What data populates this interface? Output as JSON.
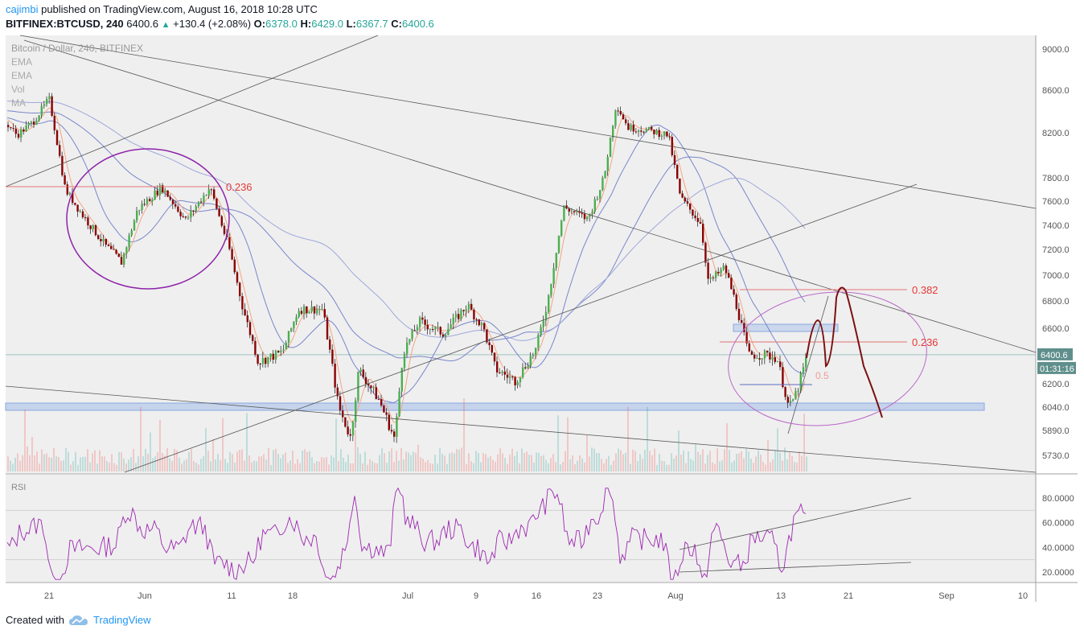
{
  "header": {
    "author": "cajimbi",
    "published_text": "published on TradingView.com, August 16, 2018 10:28 UTC",
    "symbol": "BITFINEX:BTCUSD, 240",
    "last": "6400.6",
    "change": "+130.4 (+2.08%)",
    "o_label": "O:",
    "o": "6378.0",
    "h_label": "H:",
    "h": "6429.0",
    "l_label": "L:",
    "l": "6367.7",
    "c_label": "C:",
    "c": "6400.6"
  },
  "legend": {
    "title": "Bitcoin / Dollar, 240, BITFINEX",
    "items": [
      "EMA",
      "EMA",
      "Vol",
      "MA"
    ]
  },
  "price_tag": "6400.6",
  "timer_tag": "01:31:16",
  "fib_labels": [
    "0.236",
    "0.382",
    "0.236",
    "0.5"
  ],
  "rsi_label": "RSI",
  "footer": {
    "created_with": "Created with",
    "brand": "TradingView"
  },
  "colors": {
    "up": "#26a69a",
    "down": "#ef5350",
    "candle": "#8b0000",
    "fib": "#e53935",
    "ellipse": "#9c27b0",
    "rsi": "#9c27b0",
    "ma": "#7986cb",
    "link": "#2196f3"
  },
  "chart_data": {
    "type": "candlestick",
    "price_axis_ticks": [
      9000,
      8600,
      8200,
      7800,
      7600,
      7400,
      7200,
      7000,
      6800,
      6600,
      6400,
      6200,
      6040,
      5890,
      5730
    ],
    "price_tick_labels": [
      "9000.0",
      "8600.0",
      "8200.0",
      "7800.0",
      "7600.0",
      "7400.0",
      "7200.0",
      "7000.0",
      "6800.0",
      "6600.0",
      "6400.0",
      "6200.0",
      "6040.0",
      "5890.0",
      "5730.0"
    ],
    "rsi_ticks": [
      80,
      60,
      40,
      20
    ],
    "rsi_tick_labels": [
      "80.0000",
      "60.0000",
      "40.0000",
      "20.0000"
    ],
    "time_ticks": [
      "21",
      "Jun",
      "11",
      "18",
      "Jul",
      "9",
      "16",
      "23",
      "Aug",
      "13",
      "21",
      "Sep",
      "10"
    ],
    "last_price": 6400.6,
    "price_path": [
      [
        0,
        8350
      ],
      [
        20,
        8180
      ],
      [
        40,
        8300
      ],
      [
        60,
        8520
      ],
      [
        80,
        7700
      ],
      [
        100,
        7500
      ],
      [
        130,
        7230
      ],
      [
        150,
        7100
      ],
      [
        170,
        7530
      ],
      [
        200,
        7720
      ],
      [
        230,
        7440
      ],
      [
        260,
        7720
      ],
      [
        285,
        7180
      ],
      [
        300,
        6770
      ],
      [
        320,
        6350
      ],
      [
        350,
        6420
      ],
      [
        370,
        6740
      ],
      [
        400,
        6740
      ],
      [
        420,
        6040
      ],
      [
        435,
        5840
      ],
      [
        445,
        6300
      ],
      [
        470,
        6090
      ],
      [
        490,
        5830
      ],
      [
        500,
        6420
      ],
      [
        520,
        6650
      ],
      [
        550,
        6560
      ],
      [
        580,
        6770
      ],
      [
        600,
        6600
      ],
      [
        615,
        6300
      ],
      [
        640,
        6220
      ],
      [
        665,
        6440
      ],
      [
        680,
        6800
      ],
      [
        700,
        7550
      ],
      [
        730,
        7450
      ],
      [
        750,
        7800
      ],
      [
        765,
        8470
      ],
      [
        780,
        8250
      ],
      [
        800,
        8230
      ],
      [
        830,
        8180
      ],
      [
        845,
        7630
      ],
      [
        870,
        7420
      ],
      [
        880,
        6940
      ],
      [
        900,
        7060
      ],
      [
        915,
        6760
      ],
      [
        930,
        6400
      ],
      [
        950,
        6400
      ],
      [
        965,
        6380
      ],
      [
        980,
        6030
      ],
      [
        990,
        6150
      ],
      [
        1003,
        6400
      ]
    ]
  }
}
